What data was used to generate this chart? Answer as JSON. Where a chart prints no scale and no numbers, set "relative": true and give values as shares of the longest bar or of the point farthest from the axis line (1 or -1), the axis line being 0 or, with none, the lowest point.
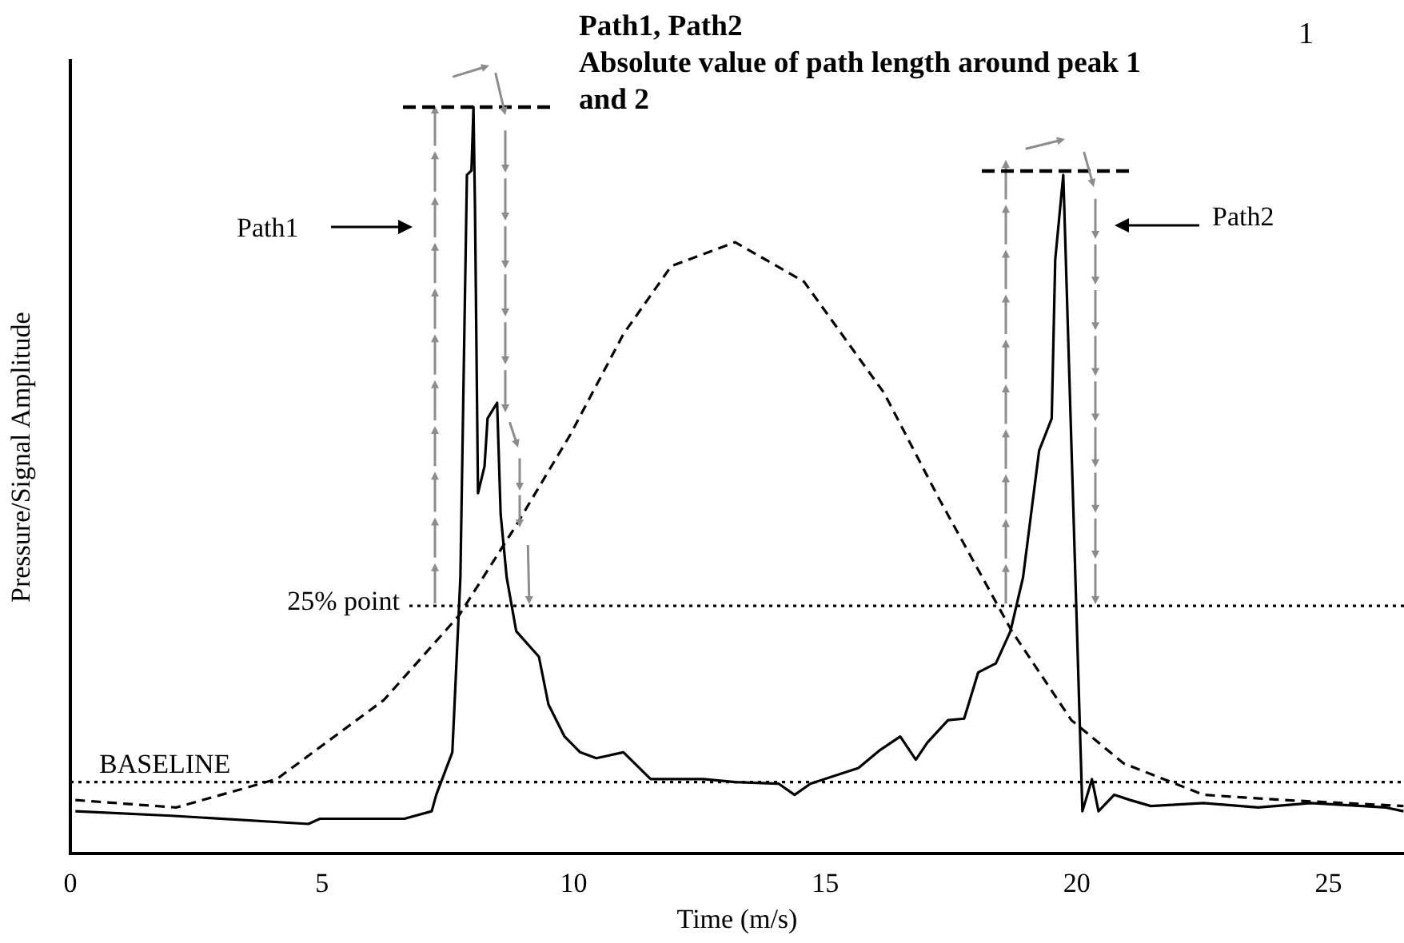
{
  "chart_data": {
    "type": "line",
    "relative": true,
    "xlabel": "Time (m/s)",
    "ylabel": "Pressure/Signal Amplitude",
    "xlim": [
      0,
      26.5
    ],
    "xticks": [
      0,
      5,
      10,
      15,
      20,
      25
    ],
    "grid": false,
    "legend": false,
    "marker": "none",
    "series": [
      {
        "color": "#000000",
        "line_style": "solid",
        "x": [
          0.1,
          2.0,
          4.73,
          4.96,
          6.64,
          7.18,
          7.27,
          7.59,
          7.75,
          7.88,
          7.97,
          8.01,
          8.04,
          8.1,
          8.23,
          8.29,
          8.48,
          8.55,
          8.67,
          8.86,
          9.31,
          9.5,
          9.82,
          10.13,
          10.45,
          10.99,
          11.53,
          12.58,
          13.21,
          14.07,
          14.39,
          14.71,
          15.66,
          16.07,
          16.49,
          16.8,
          17.03,
          17.44,
          17.76,
          18.04,
          18.39,
          18.68,
          18.93,
          19.25,
          19.5,
          19.57,
          19.73,
          20.11,
          20.3,
          20.43,
          20.74,
          21.06,
          21.47,
          22.52,
          23.6,
          24.65,
          26.14,
          26.49
        ],
        "values": [
          0.057,
          0.051,
          0.04,
          0.047,
          0.047,
          0.057,
          0.079,
          0.136,
          0.37,
          0.909,
          0.915,
          1.0,
          0.866,
          0.483,
          0.519,
          0.583,
          0.604,
          0.455,
          0.37,
          0.298,
          0.264,
          0.2,
          0.157,
          0.136,
          0.128,
          0.136,
          0.1,
          0.1,
          0.096,
          0.094,
          0.079,
          0.094,
          0.115,
          0.138,
          0.157,
          0.126,
          0.149,
          0.179,
          0.181,
          0.243,
          0.255,
          0.298,
          0.37,
          0.54,
          0.583,
          0.796,
          0.909,
          0.057,
          0.1,
          0.057,
          0.079,
          0.072,
          0.064,
          0.068,
          0.062,
          0.068,
          0.062,
          0.057
        ]
      },
      {
        "color": "#000000",
        "line_style": "dashed",
        "x": [
          0.1,
          2.1,
          4.1,
          6.23,
          7.72,
          8.86,
          9.94,
          10.99,
          11.94,
          13.21,
          14.58,
          16.17,
          17.25,
          18.71,
          19.89,
          20.93,
          22.52,
          24.11,
          26.49
        ],
        "values": [
          0.072,
          0.062,
          0.1,
          0.206,
          0.319,
          0.44,
          0.562,
          0.696,
          0.787,
          0.819,
          0.766,
          0.617,
          0.477,
          0.298,
          0.179,
          0.121,
          0.079,
          0.072,
          0.064
        ]
      }
    ],
    "ref_lines": [
      {
        "axis": "y",
        "value": 0.096,
        "label": "BASELINE",
        "line_style": "dotted",
        "color": "#000000"
      },
      {
        "axis": "y",
        "value": 0.332,
        "label": "25% point",
        "line_style": "dotted",
        "color": "#000000"
      }
    ],
    "annotations": [
      "Path1, Path2",
      "Absolute value of path length around peak 1 and 2",
      "Path1",
      "Path2",
      "1"
    ]
  }
}
